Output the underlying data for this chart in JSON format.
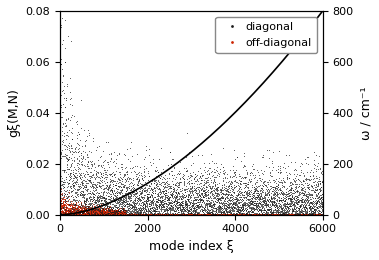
{
  "title": "",
  "xlabel": "mode index ξ",
  "ylabel_left": "gξ(M,N)",
  "ylabel_right": "ω / cm⁻¹",
  "xlim": [
    0,
    6000
  ],
  "ylim_left": [
    0,
    0.08
  ],
  "ylim_right": [
    0,
    800
  ],
  "xticks": [
    0,
    2000,
    4000,
    6000
  ],
  "yticks_left": [
    0,
    0.02,
    0.04,
    0.06,
    0.08
  ],
  "yticks_right": [
    0,
    200,
    400,
    600,
    800
  ],
  "n_modes": 6000,
  "diagonal_color": "#1a1a1a",
  "offdiag_color": "#cc2200",
  "line_color": "#000000",
  "background_color": "#ffffff",
  "legend_diagonal": "diagonal",
  "legend_offdiagonal": "off-diagonal",
  "diag_seed": 42,
  "offdiag_seed": 123,
  "freq_power": 1.7
}
